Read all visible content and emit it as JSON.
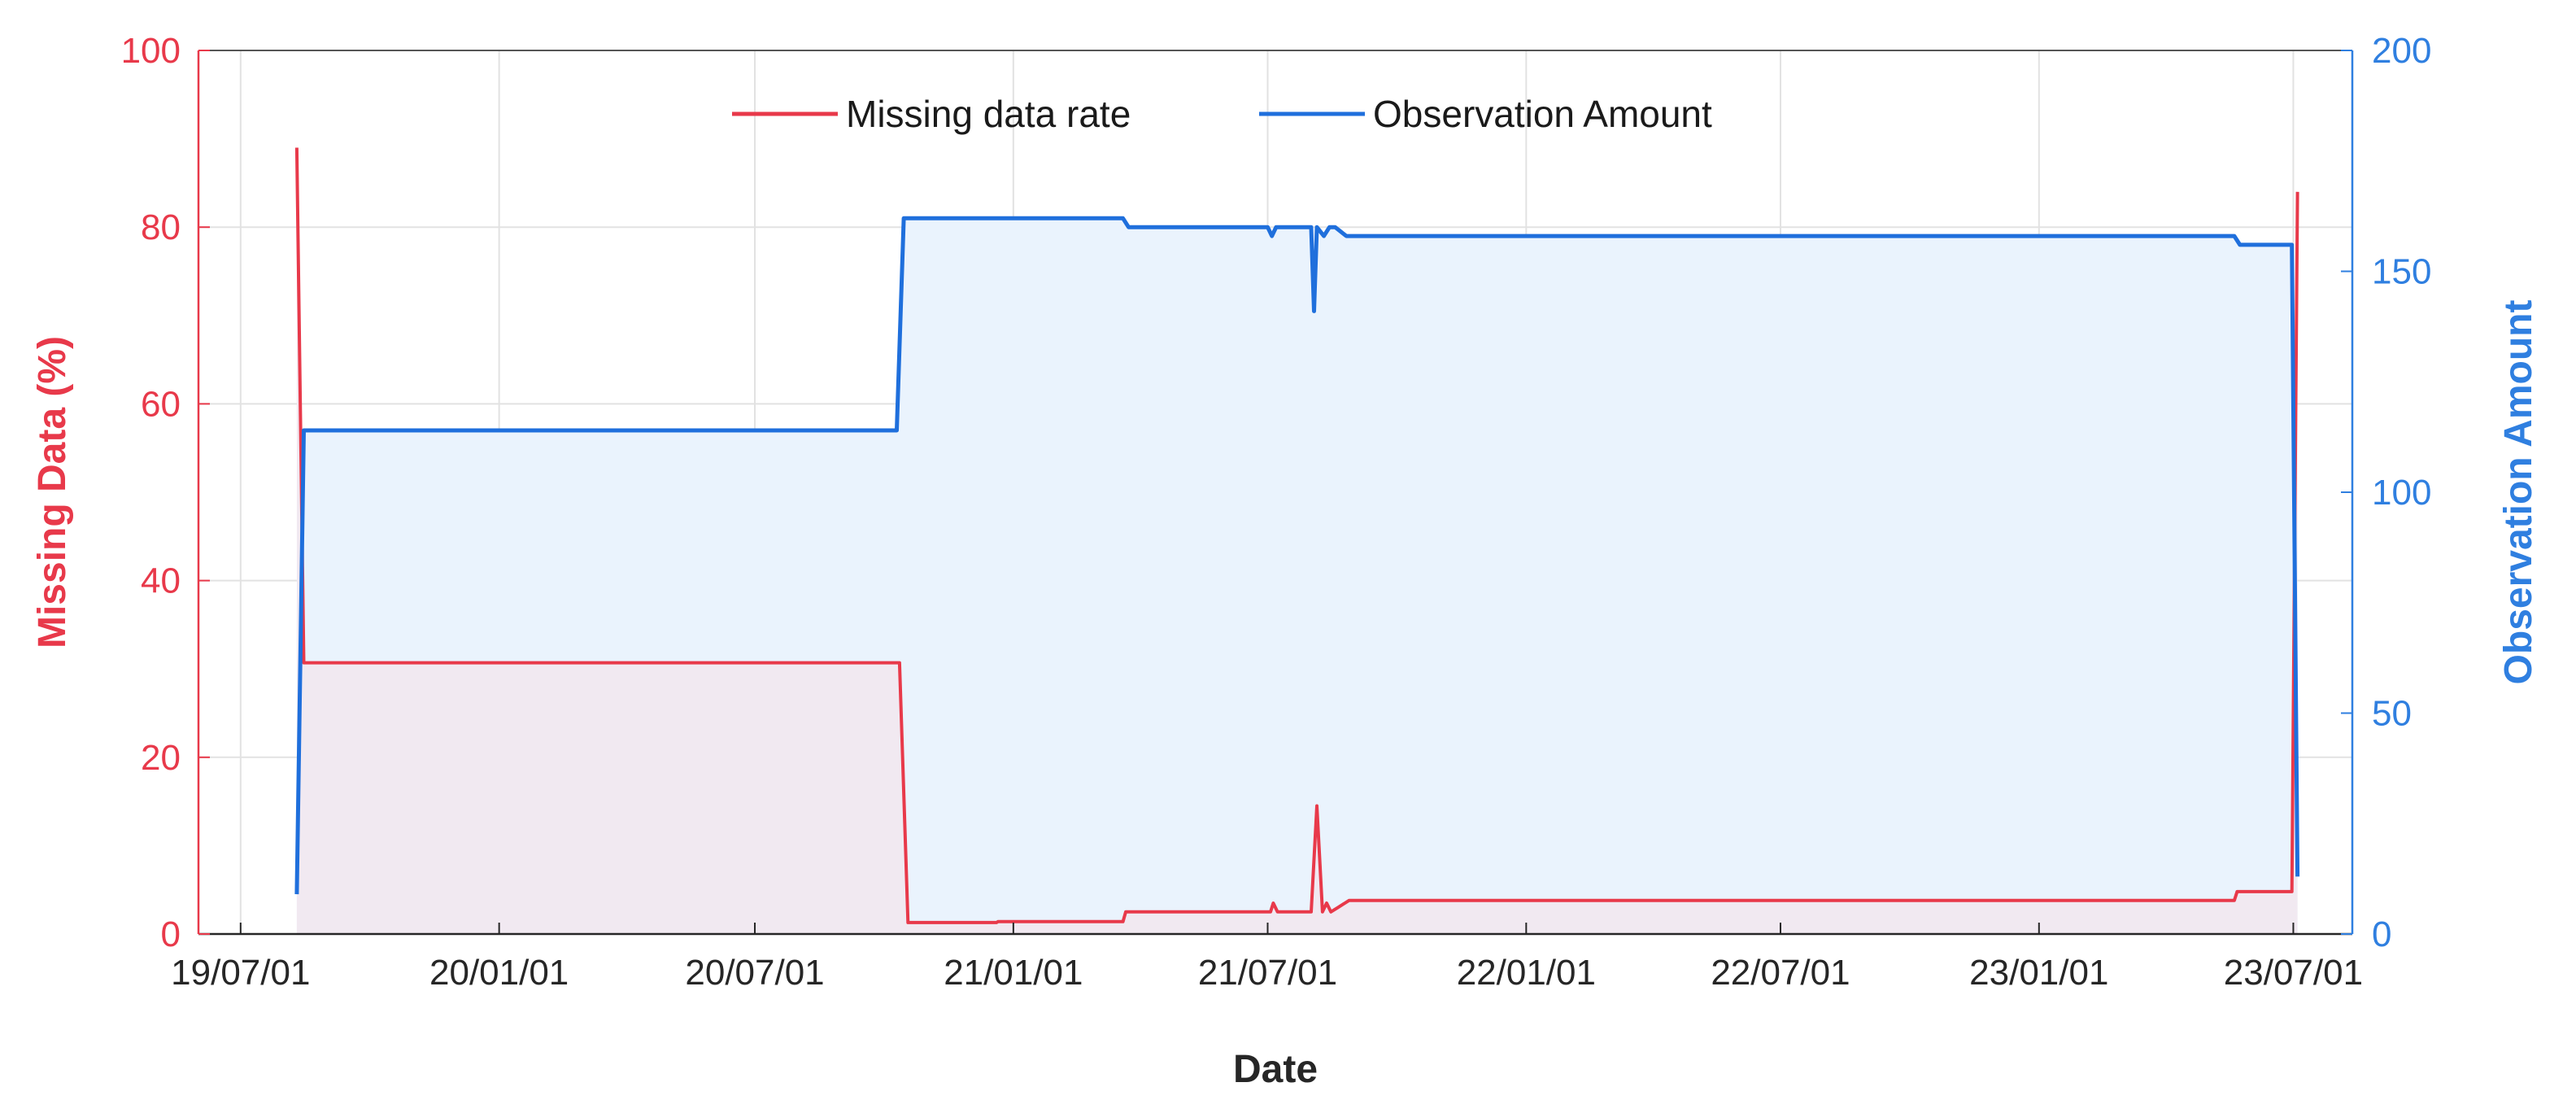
{
  "chart_data": {
    "type": "line",
    "title": "",
    "xlabel": "Date",
    "ylabel_left": "Missing Data (%)",
    "ylabel_right": "Observation Amount",
    "x_tick_labels": [
      "19/07/01",
      "20/01/01",
      "20/07/01",
      "21/01/01",
      "21/07/01",
      "22/01/01",
      "22/07/01",
      "23/01/01",
      "23/07/01"
    ],
    "x_ticks": [
      "2019-07-01",
      "2020-01-01",
      "2020-07-01",
      "2021-01-01",
      "2021-07-01",
      "2022-01-01",
      "2022-07-01",
      "2023-01-01",
      "2023-07-01"
    ],
    "xlim": [
      "2019-06-01",
      "2023-08-12"
    ],
    "ylim_left": [
      0,
      100
    ],
    "ylim_right": [
      0,
      200
    ],
    "yticks_left": [
      0,
      20,
      40,
      60,
      80,
      100
    ],
    "yticks_right": [
      0,
      50,
      100,
      150,
      200
    ],
    "grid": true,
    "legend_position": "top-center",
    "colors": {
      "missing": "#e8394a",
      "observation": "#1f6fdc",
      "observation_fill": "#eaf3fd",
      "missing_fill": "#f1e9f1",
      "grid": "#e2e2e2",
      "axis_left": "#e8394a",
      "axis_right": "#2f7fe0"
    },
    "series": [
      {
        "name": "Missing data rate",
        "axis": "left",
        "points": [
          [
            "2019-08-10",
            89
          ],
          [
            "2019-08-15",
            30.7
          ],
          [
            "2020-10-12",
            30.7
          ],
          [
            "2020-10-18",
            1.3
          ],
          [
            "2020-12-20",
            1.3
          ],
          [
            "2020-12-21",
            1.4
          ],
          [
            "2021-03-20",
            1.4
          ],
          [
            "2021-03-22",
            2.5
          ],
          [
            "2021-07-03",
            2.5
          ],
          [
            "2021-07-05",
            3.5
          ],
          [
            "2021-07-08",
            2.5
          ],
          [
            "2021-08-01",
            2.5
          ],
          [
            "2021-08-05",
            14.5
          ],
          [
            "2021-08-09",
            2.5
          ],
          [
            "2021-08-12",
            3.5
          ],
          [
            "2021-08-15",
            2.5
          ],
          [
            "2021-08-20",
            3
          ],
          [
            "2021-08-28",
            3.8
          ],
          [
            "2023-05-20",
            3.8
          ],
          [
            "2023-05-22",
            4.8
          ],
          [
            "2023-06-30",
            4.8
          ],
          [
            "2023-07-04",
            84
          ]
        ]
      },
      {
        "name": "Observation Amount",
        "axis": "right",
        "points": [
          [
            "2019-08-10",
            9
          ],
          [
            "2019-08-15",
            114
          ],
          [
            "2020-10-10",
            114
          ],
          [
            "2020-10-15",
            162
          ],
          [
            "2020-12-20",
            162
          ],
          [
            "2021-03-20",
            162
          ],
          [
            "2021-03-24",
            160
          ],
          [
            "2021-07-01",
            160
          ],
          [
            "2021-07-04",
            158
          ],
          [
            "2021-07-07",
            160
          ],
          [
            "2021-08-01",
            160
          ],
          [
            "2021-08-03",
            141
          ],
          [
            "2021-08-05",
            160
          ],
          [
            "2021-08-10",
            158
          ],
          [
            "2021-08-14",
            160
          ],
          [
            "2021-08-18",
            160
          ],
          [
            "2021-08-26",
            158
          ],
          [
            "2023-05-20",
            158
          ],
          [
            "2023-05-24",
            156
          ],
          [
            "2023-06-30",
            156
          ],
          [
            "2023-07-04",
            13
          ]
        ]
      }
    ]
  }
}
